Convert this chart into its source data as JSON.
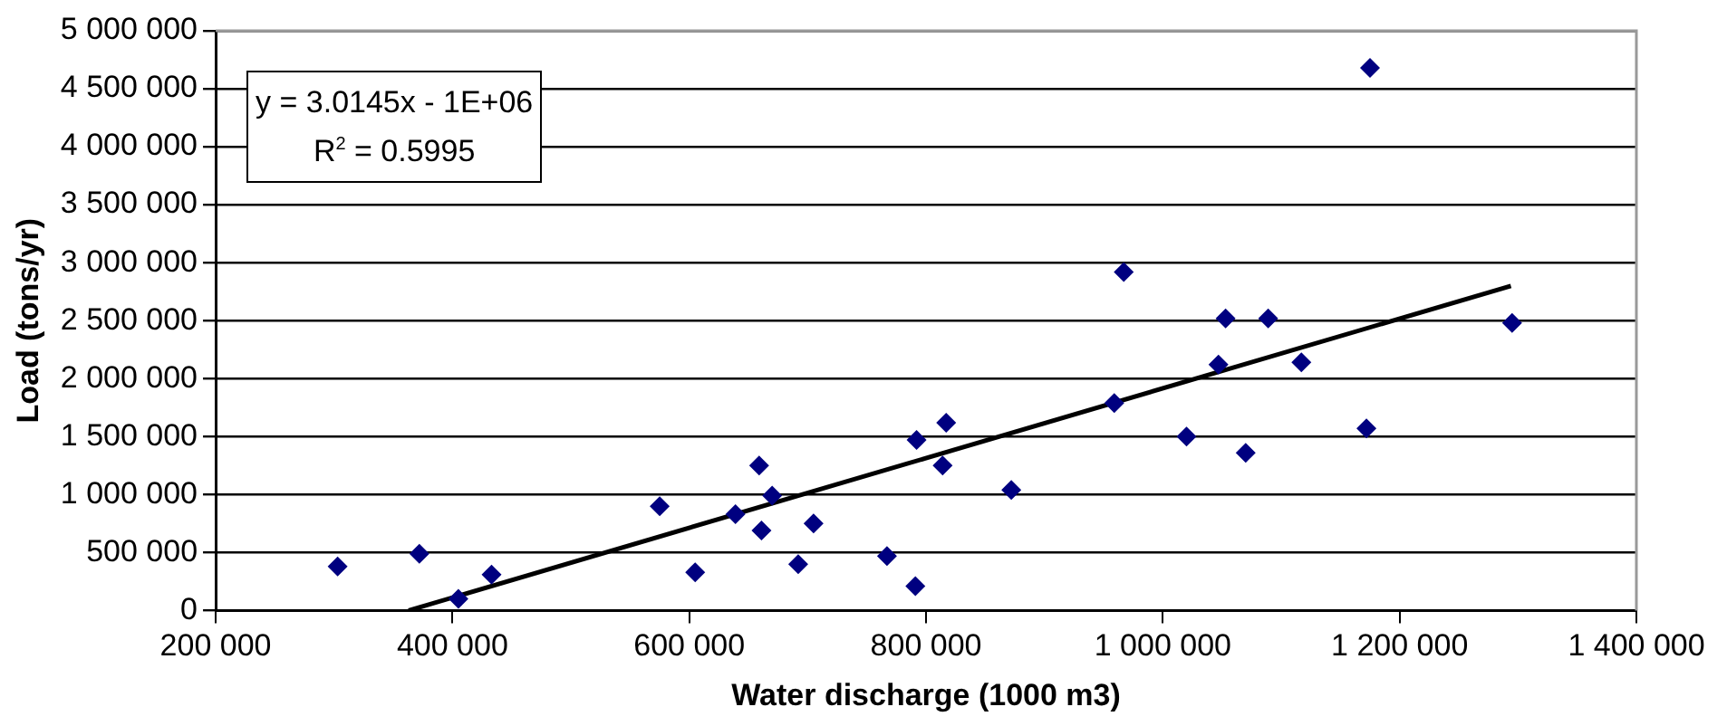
{
  "chart_data": {
    "type": "scatter",
    "xlabel": "Water discharge (1000 m3)",
    "ylabel": "Load (tons/yr)",
    "xlim": [
      200000,
      1400000
    ],
    "xticks": [
      {
        "value": 200000,
        "label": "200 000"
      },
      {
        "value": 400000,
        "label": "400 000"
      },
      {
        "value": 600000,
        "label": "600 000"
      },
      {
        "value": 800000,
        "label": "800 000"
      },
      {
        "value": 1000000,
        "label": "1 000 000"
      },
      {
        "value": 1200000,
        "label": "1 200 000"
      },
      {
        "value": 1400000,
        "label": "1 400 000"
      }
    ],
    "ylim": [
      0,
      5000000
    ],
    "yticks": [
      0,
      {
        "value": 500000,
        "label": "500 000"
      },
      {
        "value": 1000000,
        "label": "1 000 000"
      },
      {
        "value": 1500000,
        "label": "1 500 000"
      },
      {
        "value": 2000000,
        "label": "2 000 000"
      },
      {
        "value": 2500000,
        "label": "2 500 000"
      },
      {
        "value": 3000000,
        "label": "3 000 000"
      },
      {
        "value": 3500000,
        "label": "3 500 000"
      },
      {
        "value": 4000000,
        "label": "4 000 000"
      },
      {
        "value": 4500000,
        "label": "4 500 000"
      },
      {
        "value": 5000000,
        "label": "5 000 000"
      }
    ],
    "grid": "y",
    "legend": false,
    "marker": "diamond",
    "annotations": [
      "y = 3.0145x - 1E+06",
      "R$^{2}$ = 0.5995"
    ],
    "series": [
      {
        "color": "#000080",
        "x": [
          303000,
          372000,
          405000,
          433000,
          575000,
          605000,
          639000,
          659000,
          661000,
          670000,
          692000,
          705000,
          767000,
          791000,
          792000,
          817000,
          814000,
          872000,
          967000,
          959000,
          1020000,
          1053000,
          1089000,
          1047000,
          1117000,
          1070000,
          1172000,
          1175000,
          1295000
        ],
        "values": [
          380000,
          490000,
          100000,
          310000,
          900000,
          330000,
          830000,
          1250000,
          690000,
          990000,
          400000,
          750000,
          470000,
          210000,
          1470000,
          1620000,
          1250000,
          1040000,
          2920000,
          1790000,
          1500000,
          2520000,
          2520000,
          2120000,
          2140000,
          1360000,
          1570000,
          4680000,
          2480000
        ]
      },
      {
        "type": "line",
        "color": "#000000",
        "marker": "none",
        "line_style": "solid",
        "x": [
          363000,
          1294000
        ],
        "values": [
          0,
          2800000
        ]
      }
    ]
  }
}
